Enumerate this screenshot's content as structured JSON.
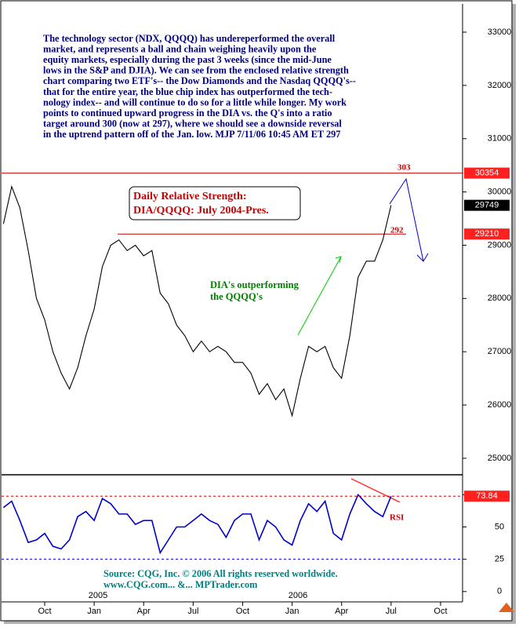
{
  "commentary": [
    "The technology sector (NDX, QQQQ) has undereperformed the overall",
    "market, and represents a ball and chain weighing heavily upon the",
    "equity markets, especially during the past 3 weeks (since the mid-June",
    "lows in the S&P and DJIA). We can see from the enclosed relative strength",
    "chart comparing two ETF's-- the Dow Diamonds and the Nasdaq QQQQ's--",
    "that for the entire year, the blue chip index has outperformed the tech-",
    "nology index-- and will continue to do so for a little while longer. My work",
    "points to continued upward progress in the DIA vs. the Q's into a ratio",
    "target around 300 (now at 297), where we should see a downside reversal",
    "in the uptrend pattern off of the Jan. low. MJP  7/11/06  10:45 AM ET  297"
  ],
  "chart_data": [
    {
      "type": "line",
      "title": [
        "Daily Relative Strength:",
        "DIA/QQQQ: July 2004-Pres."
      ],
      "annotations": [
        "DIA's outperforming",
        "the QQQQ's",
        "303",
        "292"
      ],
      "color": "#000000",
      "values": [
        29400,
        30100,
        29700,
        28900,
        28000,
        27600,
        27000,
        26600,
        26300,
        26700,
        27300,
        27800,
        28600,
        29000,
        29100,
        28900,
        29000,
        28800,
        28900,
        28100,
        27900,
        27500,
        27300,
        27000,
        27200,
        27000,
        27100,
        27000,
        26800,
        26800,
        26600,
        26200,
        26400,
        26100,
        26300,
        25800,
        26500,
        27100,
        27000,
        27100,
        26700,
        26500,
        27300,
        28400,
        28700,
        28700,
        29100,
        29749,
        null,
        null,
        null,
        null,
        null,
        null,
        null,
        null
      ],
      "levels": [
        30354,
        29210
      ],
      "ylim": [
        24690,
        33530
      ],
      "yticks": [
        25000,
        26000,
        27000,
        28000,
        29000,
        30000,
        31000,
        32000,
        33000
      ]
    },
    {
      "type": "line",
      "label": "RSI",
      "color": "#0000cc",
      "categories": [
        null,
        null,
        null,
        null,
        null,
        "Oct",
        null,
        null,
        null,
        null,
        null,
        "Jan",
        null,
        null,
        null,
        null,
        null,
        "Apr",
        null,
        null,
        null,
        null,
        null,
        "Jul",
        null,
        null,
        null,
        null,
        null,
        "Oct",
        null,
        null,
        null,
        null,
        null,
        "Jan",
        null,
        null,
        null,
        null,
        null,
        "Apr",
        null,
        null,
        null,
        null,
        null,
        "Jul",
        null,
        null,
        null,
        null,
        null,
        "Oct",
        null,
        null
      ],
      "year_labels": [
        "2005",
        "2006"
      ],
      "values": [
        65,
        70,
        55,
        38,
        40,
        45,
        35,
        33,
        40,
        58,
        62,
        55,
        72,
        68,
        60,
        60,
        52,
        55,
        55,
        30,
        40,
        50,
        50,
        55,
        60,
        55,
        52,
        42,
        55,
        60,
        60,
        40,
        55,
        50,
        40,
        36,
        55,
        68,
        62,
        70,
        45,
        40,
        60,
        75,
        68,
        62,
        58,
        73.84,
        null,
        null,
        null,
        null,
        null,
        null,
        null,
        null
      ],
      "lower_line": 25,
      "ylim": [
        -8,
        90.4
      ],
      "yticks": [
        0,
        25,
        50,
        75
      ]
    }
  ],
  "source": [
    "Source: CQG, Inc. © 2006 All rights reserved worldwide.",
    "www.CQG.com... &... MPTrader.com"
  ]
}
